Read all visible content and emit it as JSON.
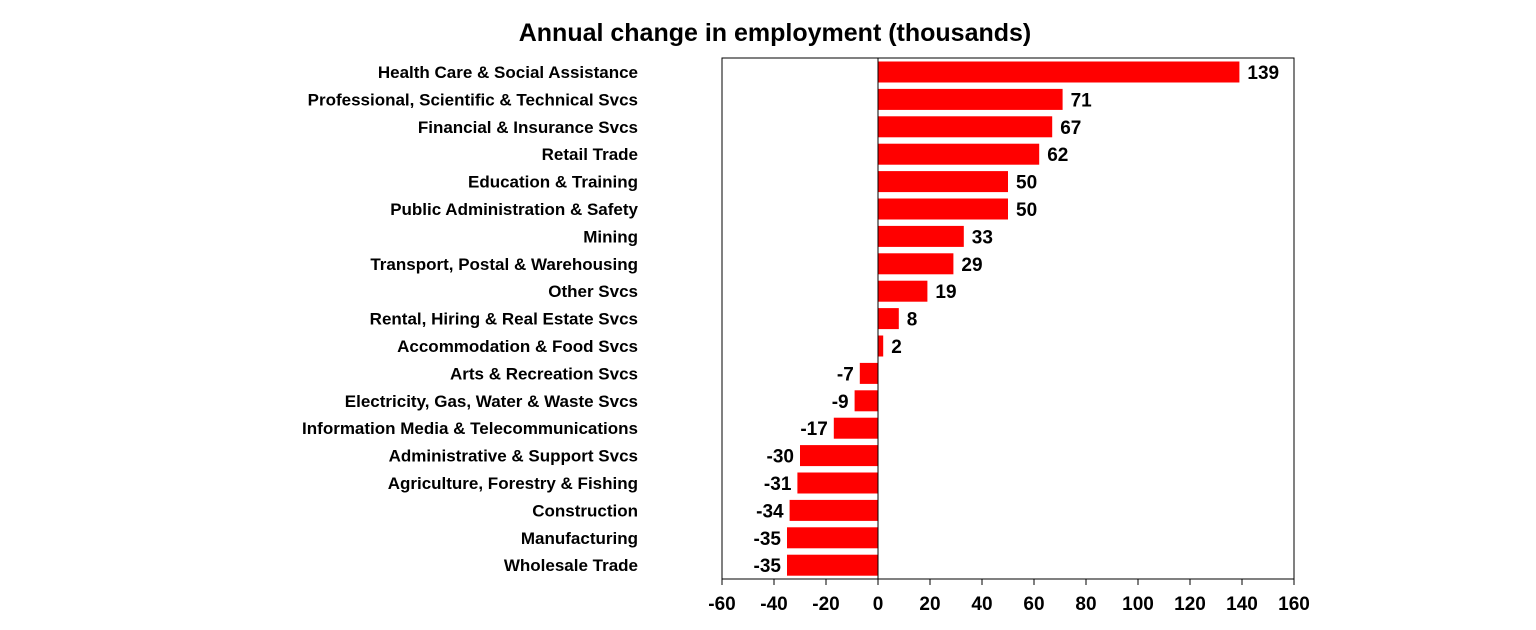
{
  "chart_data": {
    "type": "bar",
    "orientation": "horizontal",
    "title": "Annual change in employment (thousands)",
    "xlabel": "",
    "ylabel": "",
    "xlim": [
      -60,
      160
    ],
    "x_ticks": [
      -60,
      -40,
      -20,
      0,
      20,
      40,
      60,
      80,
      100,
      120,
      140,
      160
    ],
    "grid": false,
    "bar_color": "#ff0000",
    "categories": [
      "Health Care & Social Assistance",
      "Professional, Scientific & Technical Svcs",
      "Financial & Insurance Svcs",
      "Retail Trade",
      "Education & Training",
      "Public Administration & Safety",
      "Mining",
      "Transport, Postal & Warehousing",
      "Other Svcs",
      "Rental, Hiring & Real Estate Svcs",
      "Accommodation & Food Svcs",
      "Arts & Recreation Svcs",
      "Electricity, Gas, Water & Waste Svcs",
      "Information Media & Telecommunications",
      "Administrative & Support Svcs",
      "Agriculture, Forestry & Fishing",
      "Construction",
      "Manufacturing",
      "Wholesale Trade"
    ],
    "values": [
      139,
      71,
      67,
      62,
      50,
      50,
      33,
      29,
      19,
      8,
      2,
      -7,
      -9,
      -17,
      -30,
      -31,
      -34,
      -35,
      -35
    ]
  }
}
